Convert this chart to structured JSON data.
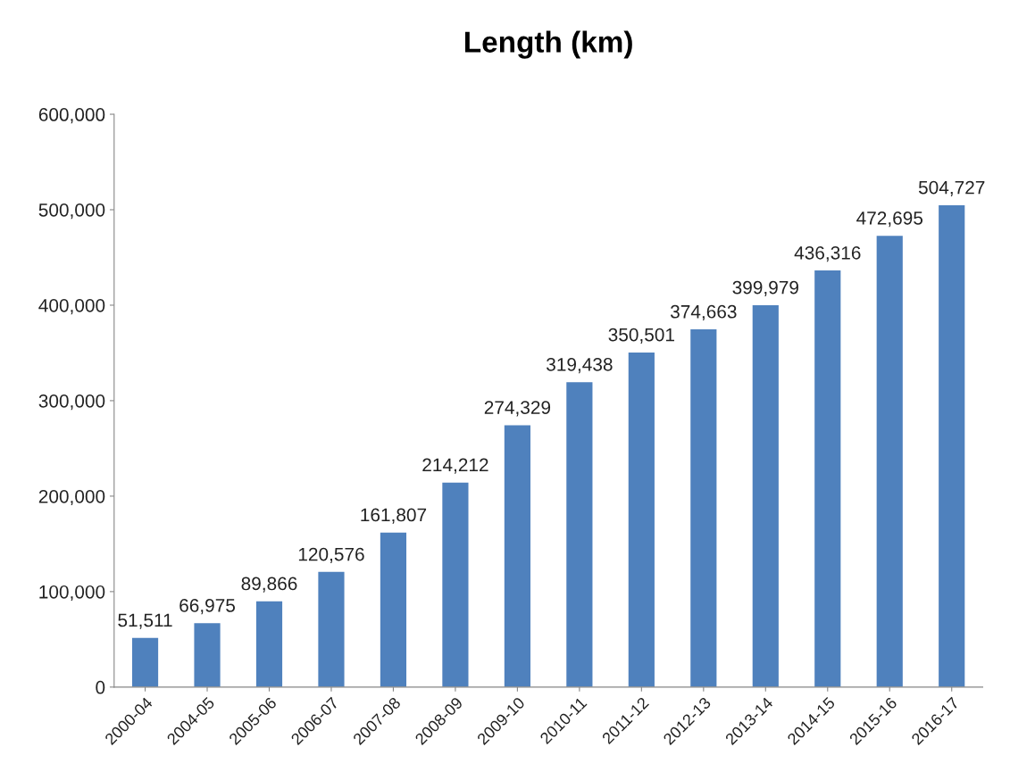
{
  "chart_data": {
    "type": "bar",
    "title": "Length (km)",
    "categories": [
      "2000-04",
      "2004-05",
      "2005-06",
      "2006-07",
      "2007-08",
      "2008-09",
      "2009-10",
      "2010-11",
      "2011-12",
      "2012-13",
      "2013-14",
      "2014-15",
      "2015-16",
      "2016-17"
    ],
    "values": [
      51511,
      66975,
      89866,
      120576,
      161807,
      214212,
      274329,
      319438,
      350501,
      374663,
      399979,
      436316,
      472695,
      504727
    ],
    "value_labels": [
      "51,511",
      "66,975",
      "89,866",
      "120,576",
      "161,807",
      "214,212",
      "274,329",
      "319,438",
      "350,501",
      "374,663",
      "399,979",
      "436,316",
      "472,695",
      "504,727"
    ],
    "color": "#4f81bd",
    "ylim": [
      0,
      600000
    ],
    "yticks": [
      0,
      {
        "value": 100000,
        "label": "100,000"
      },
      {
        "value": 200000,
        "label": "200,000"
      },
      {
        "value": 300000,
        "label": "300,000"
      },
      {
        "value": 400000,
        "label": "400,000"
      },
      {
        "value": 500000,
        "label": "500,000"
      },
      {
        "value": 600000,
        "label": "600,000"
      }
    ],
    "grid": false,
    "legend": false
  }
}
